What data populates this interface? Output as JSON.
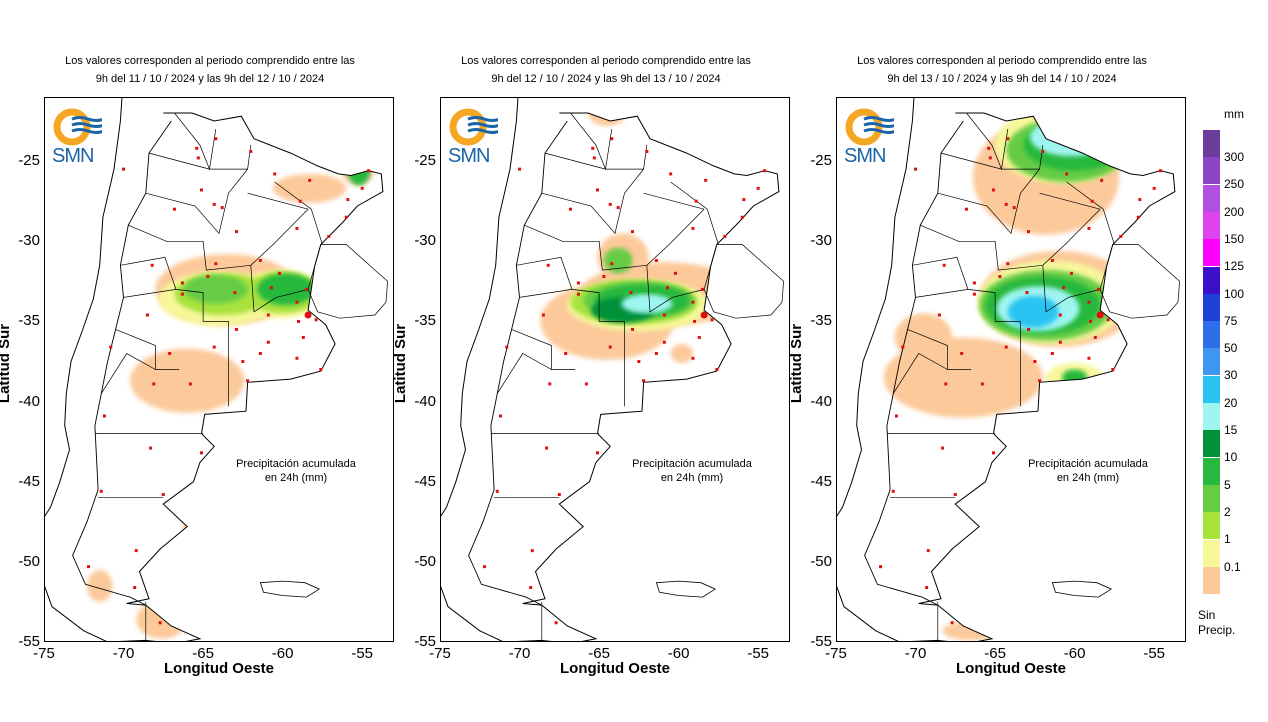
{
  "panels": [
    {
      "title_line1": "Los valores corresponden al periodo comprendido entre las",
      "title_line2": "9h del 11 / 10 / 2024  y las 9h del 12 / 10 / 2024",
      "caption_line1": "Precipitación acumulada",
      "caption_line2": "en 24h (mm)"
    },
    {
      "title_line1": "Los valores corresponden al periodo comprendido entre las",
      "title_line2": "9h del 12 / 10 / 2024  y las 9h del 13 / 10 / 2024",
      "caption_line1": "Precipitación acumulada",
      "caption_line2": "en 24h (mm)"
    },
    {
      "title_line1": "Los valores corresponden al periodo comprendido entre las",
      "title_line2": "9h del 13 / 10 / 2024  y las 9h del 14 / 10 / 2024",
      "caption_line1": "Precipitación acumulada",
      "caption_line2": "en 24h (mm)"
    }
  ],
  "axes": {
    "xlabel": "Longitud Oeste",
    "ylabel": "Latitud Sur",
    "x_ticks": [
      "-75",
      "-70",
      "-65",
      "-60",
      "-55"
    ],
    "y_ticks": [
      "-25",
      "-30",
      "-35",
      "-40",
      "-45",
      "-50",
      "-55"
    ],
    "xlim": [
      -75,
      -53
    ],
    "ylim": [
      -55,
      -21
    ]
  },
  "logo_text": "SMN",
  "legend": {
    "unit": "mm",
    "no_precip_line1": "Sin",
    "no_precip_line2": "Precip.",
    "levels": [
      {
        "label": "300",
        "color": "#6a3d9a"
      },
      {
        "label": "250",
        "color": "#8e44c4"
      },
      {
        "label": "200",
        "color": "#b14fe0"
      },
      {
        "label": "150",
        "color": "#dd44ee"
      },
      {
        "label": "125",
        "color": "#ff00ff"
      },
      {
        "label": "100",
        "color": "#3a10c8"
      },
      {
        "label": "75",
        "color": "#1f3fd6"
      },
      {
        "label": "50",
        "color": "#2f6ee8"
      },
      {
        "label": "30",
        "color": "#3f96f0"
      },
      {
        "label": "20",
        "color": "#29c4f2"
      },
      {
        "label": "15",
        "color": "#9ff5f0"
      },
      {
        "label": "10",
        "color": "#00913a"
      },
      {
        "label": "5",
        "color": "#27b83e"
      },
      {
        "label": "2",
        "color": "#66cc44"
      },
      {
        "label": "1",
        "color": "#a8e23c"
      },
      {
        "label": "0.1",
        "color": "#f7f79a"
      },
      {
        "label": "",
        "color": "#fcc99a"
      }
    ]
  }
}
